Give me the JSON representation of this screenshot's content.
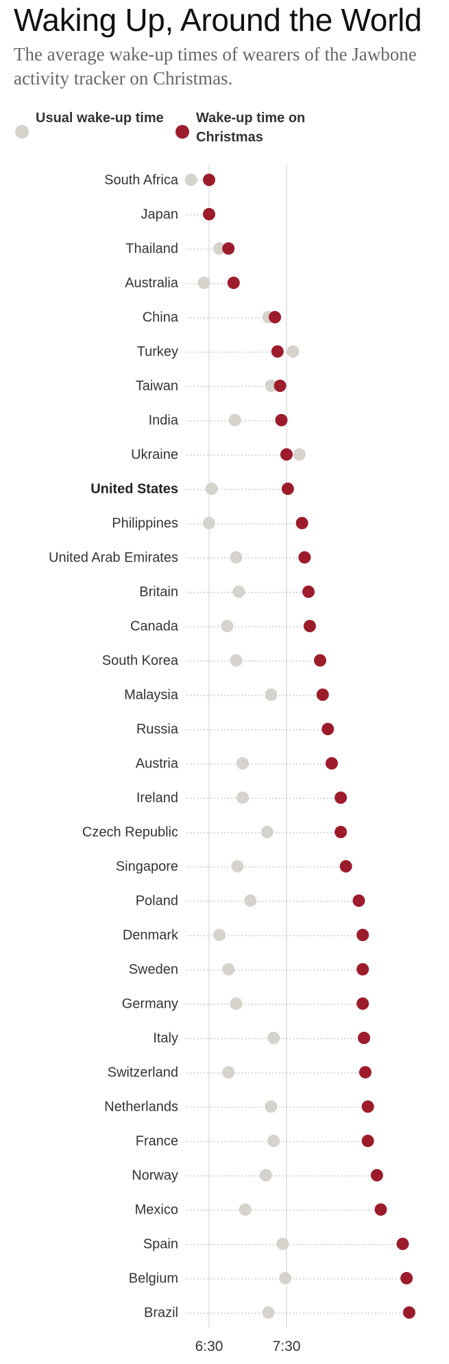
{
  "title": "Waking Up, Around the World",
  "subtitle": "The average wake-up times of wearers of the Jawbone activity tracker on Christmas.",
  "legend": {
    "usual": {
      "label": "Usual wake-up time",
      "color": "#d6d3cc"
    },
    "christmas": {
      "label": "Wake-up time on Christmas",
      "color": "#9c1c2c"
    }
  },
  "chart_data": {
    "type": "scatter",
    "title": "Waking Up, Around the World",
    "xlabel": "",
    "ylabel": "",
    "x_ticks": [
      "6:30",
      "7:30"
    ],
    "x_tick_minutes": [
      390,
      450
    ],
    "xlim_minutes": [
      378,
      545
    ],
    "highlight": "United States",
    "categories": [
      "South Africa",
      "Japan",
      "Thailand",
      "Australia",
      "China",
      "Turkey",
      "Taiwan",
      "India",
      "Ukraine",
      "United States",
      "Philippines",
      "United Arab Emirates",
      "Britain",
      "Canada",
      "South Korea",
      "Malaysia",
      "Russia",
      "Austria",
      "Ireland",
      "Czech Republic",
      "Singapore",
      "Poland",
      "Denmark",
      "Sweden",
      "Germany",
      "Italy",
      "Switzerland",
      "Netherlands",
      "France",
      "Norway",
      "Mexico",
      "Spain",
      "Belgium",
      "Brazil"
    ],
    "series": [
      {
        "name": "Usual wake-up time",
        "values": [
          376,
          null,
          398,
          386,
          436,
          455,
          438,
          410,
          460,
          392,
          390,
          411,
          413,
          404,
          411,
          438,
          null,
          416,
          416,
          435,
          412,
          422,
          398,
          405,
          411,
          440,
          405,
          438,
          440,
          434,
          418,
          447,
          449,
          436
        ]
      },
      {
        "name": "Wake-up time on Christmas",
        "values": [
          390,
          390,
          405,
          409,
          441,
          443,
          445,
          446,
          450,
          451,
          462,
          464,
          467,
          468,
          476,
          478,
          482,
          485,
          492,
          492,
          496,
          506,
          509,
          509,
          509,
          510,
          511,
          513,
          513,
          520,
          523,
          540,
          543,
          545
        ]
      }
    ]
  }
}
